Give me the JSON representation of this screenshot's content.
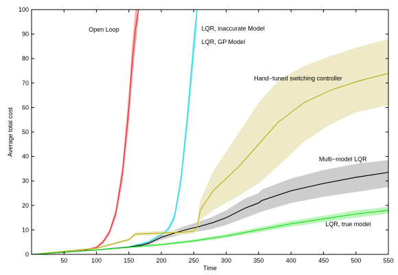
{
  "chart_data": {
    "type": "line",
    "title": "",
    "xlabel": "Time",
    "ylabel": "Average total cost",
    "xlim": [
      0,
      550
    ],
    "ylim": [
      0,
      100
    ],
    "xticks": [
      50,
      100,
      150,
      200,
      250,
      300,
      350,
      400,
      450,
      500,
      550
    ],
    "yticks": [
      0,
      10,
      20,
      30,
      40,
      50,
      60,
      70,
      80,
      90,
      100
    ],
    "grid": false,
    "series": [
      {
        "name": "Open Loop",
        "color": "#e8262a",
        "band_color": "#f2a9a9",
        "x": [
          0,
          50,
          80,
          100,
          110,
          120,
          130,
          140,
          150,
          155,
          160,
          165
        ],
        "y": [
          0,
          0.8,
          1.6,
          2.8,
          5,
          9,
          17,
          33,
          60,
          78,
          92,
          100
        ],
        "band_lower": [
          0,
          0.6,
          1.3,
          2.4,
          4.3,
          8,
          15,
          29,
          53,
          70,
          84,
          96
        ],
        "band_upper": [
          0,
          1,
          1.9,
          3.3,
          5.8,
          10,
          19,
          37,
          67,
          86,
          100,
          100
        ]
      },
      {
        "name": "LQR, inaccurate Model",
        "color": "#22d5e8",
        "band_color": "#a9ecf2",
        "x": [
          0,
          100,
          150,
          180,
          200,
          210,
          220,
          230,
          240,
          250,
          255
        ],
        "y": [
          0,
          1.8,
          3,
          5,
          8,
          10,
          15,
          30,
          55,
          85,
          100
        ],
        "band_lower": [
          0,
          1.6,
          2.7,
          4.5,
          7.2,
          9,
          13.5,
          27,
          50,
          78,
          93
        ],
        "band_upper": [
          0,
          2,
          3.3,
          5.5,
          8.8,
          11,
          16.5,
          33,
          60,
          92,
          100
        ]
      },
      {
        "name": "LQR, GP Model",
        "color": "#000000",
        "band_color": "#c8c8c8",
        "x": [
          0,
          100,
          150,
          170,
          180,
          200,
          230,
          260,
          280,
          300,
          330,
          350,
          355,
          400,
          450,
          500,
          550
        ],
        "y": [
          0,
          1.8,
          3,
          3.8,
          4.5,
          7,
          9.5,
          11.5,
          13,
          15,
          19,
          21,
          22,
          26,
          29,
          31.5,
          33.5
        ],
        "band_lower": [
          0,
          1.6,
          2.7,
          3.3,
          3.8,
          6,
          8,
          9.5,
          10.5,
          12,
          15,
          17,
          17.5,
          21,
          23.5,
          25.5,
          27.5
        ],
        "band_upper": [
          0,
          2,
          3.3,
          4.3,
          5.2,
          8,
          11,
          13.5,
          15.5,
          18,
          23,
          25,
          26.5,
          31,
          34.5,
          37,
          38.5
        ]
      },
      {
        "name": "Hand−tuned switching controller",
        "color": "#b8b21a",
        "band_color": "#ece8c2",
        "x": [
          0,
          100,
          150,
          160,
          200,
          230,
          250,
          255,
          260,
          280,
          300,
          320,
          350,
          380,
          420,
          460,
          500,
          550
        ],
        "y": [
          0,
          2.5,
          6,
          8.3,
          8.7,
          9,
          9.5,
          11,
          18,
          26,
          31,
          36,
          45,
          54,
          62,
          67,
          70.5,
          74
        ],
        "band_lower": [
          0,
          2.2,
          5.5,
          7.5,
          7.8,
          8,
          8.5,
          9.5,
          14,
          18,
          21,
          24,
          29,
          36,
          46,
          53,
          58,
          61
        ],
        "band_upper": [
          0,
          2.8,
          6.5,
          9.1,
          9.6,
          10,
          10.5,
          12.5,
          22,
          34,
          42,
          50,
          62,
          71,
          77,
          81,
          84.5,
          88
        ]
      },
      {
        "name": "LQR, true model",
        "color": "#22dd22",
        "band_color": "#b5f5b5",
        "x": [
          0,
          100,
          200,
          250,
          300,
          350,
          400,
          450,
          500,
          550
        ],
        "y": [
          0,
          1.8,
          4,
          5.5,
          7.5,
          10,
          12.5,
          14.5,
          16.5,
          18
        ],
        "band_lower": [
          0,
          1.6,
          3.5,
          4.9,
          6.7,
          9,
          11.3,
          13.2,
          15,
          16.6
        ],
        "band_upper": [
          0,
          2,
          4.5,
          6.1,
          8.3,
          11,
          13.7,
          15.8,
          18,
          19.4
        ]
      }
    ],
    "annotations": [
      {
        "text": "Open Loop",
        "x": 88,
        "y": 91
      },
      {
        "text": "LQR, inaccurate Model",
        "x": 262,
        "y": 91.5
      },
      {
        "text": "LQR, GP Model",
        "x": 262,
        "y": 86
      },
      {
        "text": "Hand−tuned switching controller",
        "x": 343,
        "y": 71
      },
      {
        "text": "Multi−model LQR",
        "x": 443,
        "y": 38
      },
      {
        "text": "LQR, true model",
        "x": 453,
        "y": 11.5
      }
    ]
  }
}
